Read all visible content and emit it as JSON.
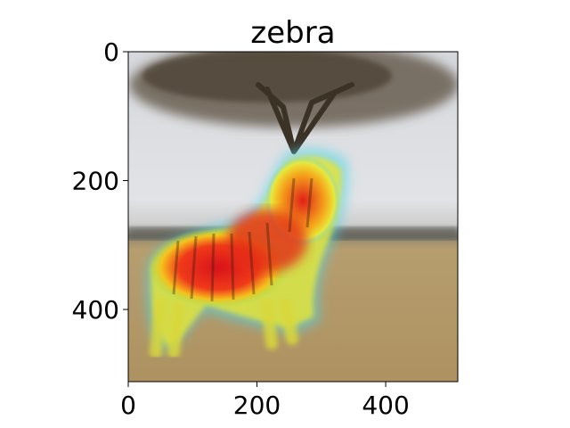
{
  "figure": {
    "title": "zebra",
    "image_subject": "zebra under acacia tree in savanna",
    "overlay": "heatmap",
    "colors": {
      "sky": "#dcdde0",
      "grass": "#b59a6a",
      "tree": "#4a3f31",
      "heat_high": "#e3161b",
      "heat_mid": "#f4c51d",
      "heat_low": "#4fd6e6"
    }
  },
  "axes": {
    "x_ticks": [
      {
        "value": 0,
        "label": "0"
      },
      {
        "value": 200,
        "label": "200"
      },
      {
        "value": 400,
        "label": "400"
      }
    ],
    "y_ticks": [
      {
        "value": 0,
        "label": "0"
      },
      {
        "value": 200,
        "label": "200"
      },
      {
        "value": 400,
        "label": "400"
      }
    ],
    "x_range": [
      0,
      512
    ],
    "y_range": [
      0,
      512
    ]
  }
}
